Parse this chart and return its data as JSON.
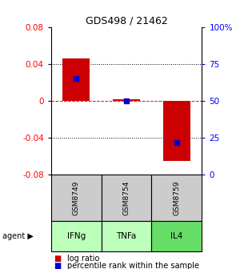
{
  "title": "GDS498 / 21462",
  "samples": [
    "GSM8749",
    "GSM8754",
    "GSM8759"
  ],
  "agents": [
    "IFNg",
    "TNFa",
    "IL4"
  ],
  "log_ratios": [
    0.046,
    0.002,
    -0.065
  ],
  "percentile_ranks": [
    65,
    50,
    22
  ],
  "bar_color": "#cc0000",
  "dot_color": "#0000cc",
  "ylim_left": [
    -0.08,
    0.08
  ],
  "ylim_right": [
    0,
    100
  ],
  "yticks_left": [
    -0.08,
    -0.04,
    0,
    0.04,
    0.08
  ],
  "yticks_right": [
    0,
    25,
    50,
    75,
    100
  ],
  "ytick_labels_right": [
    "0",
    "25",
    "50",
    "75",
    "100%"
  ],
  "sample_bg": "#cccccc",
  "agent_colors": [
    "#bbffbb",
    "#bbffbb",
    "#66dd66"
  ],
  "bar_width": 0.55,
  "dot_size": 25,
  "title_fontsize": 9,
  "tick_fontsize": 7.5,
  "legend_fontsize": 7
}
